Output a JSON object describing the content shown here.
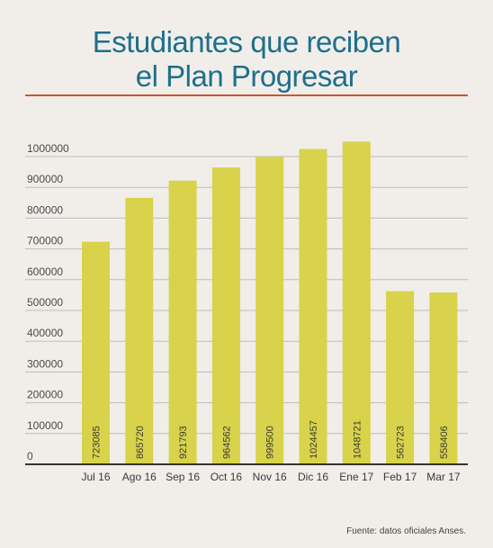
{
  "title_line1": "Estudiantes que reciben",
  "title_line2": "el Plan Progresar",
  "source": "Fuente: datos oficiales Anses.",
  "colors": {
    "background": "#f1eee9",
    "title": "#1e6f8c",
    "rule": "#d2532c",
    "bar": "#d8d34a",
    "grid": "#bdbdbd",
    "axis": "#333333"
  },
  "chart_data": {
    "type": "bar",
    "title": "Estudiantes que reciben el Plan Progresar",
    "categories": [
      "Jul 16",
      "Ago 16",
      "Sep 16",
      "Oct 16",
      "Nov 16",
      "Dic 16",
      "Ene 17",
      "Feb 17",
      "Mar 17"
    ],
    "values": [
      723085,
      865720,
      921793,
      964562,
      999500,
      1024457,
      1048721,
      562723,
      558406
    ],
    "value_labels": [
      "723085",
      "865720",
      "921793",
      "964562",
      "999500",
      "1024457",
      "1048721",
      "562723",
      "558406"
    ],
    "yticks": [
      0,
      100000,
      200000,
      300000,
      400000,
      500000,
      600000,
      700000,
      800000,
      900000,
      1000000
    ],
    "ytick_labels": [
      "0",
      "100000",
      "200000",
      "300000",
      "400000",
      "500000",
      "600000",
      "700000",
      "800000",
      "900000",
      "1000000"
    ],
    "ylim": [
      0,
      1000000
    ],
    "grid": true,
    "legend": "none",
    "xlabel": "",
    "ylabel": ""
  }
}
